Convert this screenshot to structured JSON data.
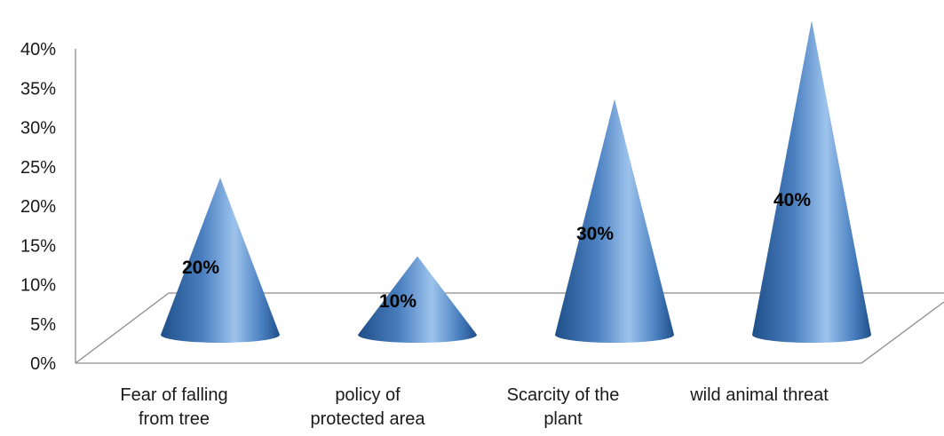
{
  "chart_data": {
    "type": "bar",
    "bar_shape": "cone",
    "view": "3d",
    "categories": [
      [
        "Fear of falling",
        "from tree"
      ],
      [
        "policy of",
        "protected area"
      ],
      [
        "Scarcity of the",
        "plant"
      ],
      [
        "wild animal threat"
      ]
    ],
    "values": [
      20,
      10,
      30,
      40
    ],
    "data_labels": [
      "20%",
      "10%",
      "30%",
      "40%"
    ],
    "y_ticks": [
      "0%",
      "5%",
      "10%",
      "15%",
      "20%",
      "25%",
      "30%",
      "35%",
      "40%"
    ],
    "ylim": [
      0,
      40
    ],
    "title": "",
    "xlabel": "",
    "ylabel": "",
    "grid": false,
    "legend": "none",
    "colors": {
      "cone_dark": "#1f4f88",
      "cone_mid": "#4a7fc0",
      "cone_light": "#9cc3ec",
      "axis": "#8c8c8c"
    }
  }
}
